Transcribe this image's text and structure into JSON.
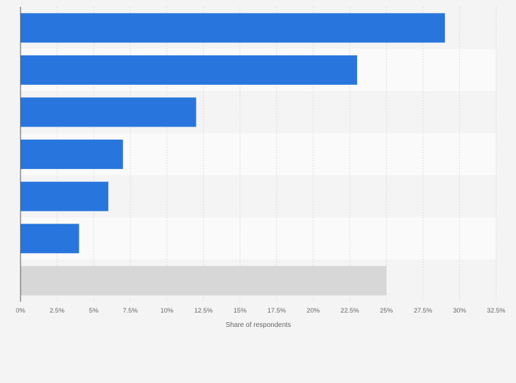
{
  "chart_data": {
    "type": "bar",
    "orientation": "horizontal",
    "categories": [
      "",
      "",
      "",
      "",
      "",
      "",
      ""
    ],
    "values": [
      29,
      23,
      12,
      7,
      6,
      4,
      25
    ],
    "bar_colors": [
      "#2876dd",
      "#2876dd",
      "#2876dd",
      "#2876dd",
      "#2876dd",
      "#2876dd",
      "#d7d7d7"
    ],
    "xlabel": "Share of respondents",
    "ylabel": "",
    "xlim": [
      0,
      32.5
    ],
    "xticks": [
      0,
      2.5,
      5,
      7.5,
      10,
      12.5,
      15,
      17.5,
      20,
      22.5,
      25,
      27.5,
      30,
      32.5
    ],
    "xtick_labels": [
      "0%",
      "2.5%",
      "5%",
      "7.5%",
      "10%",
      "12.5%",
      "15%",
      "17.5%",
      "20%",
      "22.5%",
      "25%",
      "27.5%",
      "30%",
      "32.5%"
    ],
    "grid": true,
    "legend": "none"
  },
  "colors": {
    "background": "#f4f4f4",
    "band_alt": "#fafafa",
    "gridline": "#dcdcdc",
    "axis": "#555555",
    "text": "#666666"
  }
}
